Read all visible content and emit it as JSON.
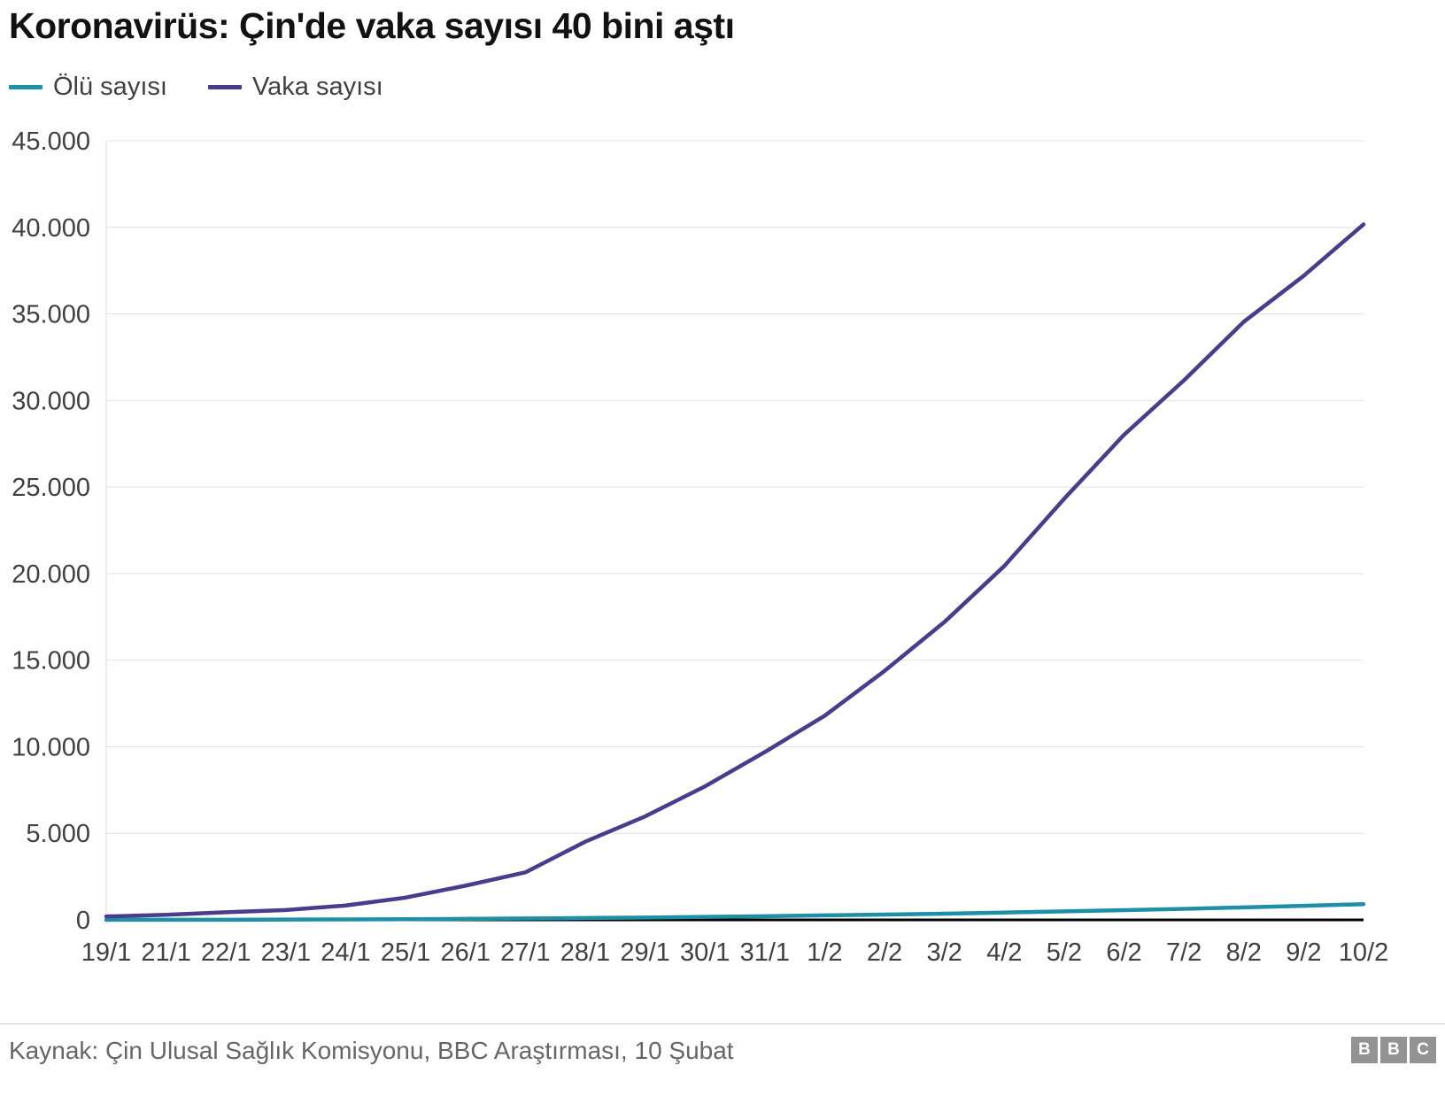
{
  "title": "Koronavirüs: Çin'de vaka sayısı 40 bini aştı",
  "footer": {
    "source": "Kaynak: Çin Ulusal Sağlık Komisyonu, BBC Araştırması, 10 Şubat",
    "logo_letters": [
      "B",
      "B",
      "C"
    ]
  },
  "chart_data": {
    "type": "line",
    "title": "Koronavirüs: Çin'de vaka sayısı 40 bini aştı",
    "categories": [
      "19/1",
      "21/1",
      "22/1",
      "23/1",
      "24/1",
      "25/1",
      "26/1",
      "27/1",
      "28/1",
      "29/1",
      "30/1",
      "31/1",
      "1/2",
      "2/2",
      "3/2",
      "4/2",
      "5/2",
      "6/2",
      "7/2",
      "8/2",
      "9/2",
      "10/2"
    ],
    "series": [
      {
        "name": "Ölü sayısı",
        "color": "#1f8fa6",
        "values": [
          3,
          6,
          9,
          17,
          25,
          41,
          56,
          80,
          106,
          132,
          170,
          213,
          259,
          304,
          361,
          425,
          490,
          563,
          636,
          722,
          811,
          908
        ]
      },
      {
        "name": "Vaka sayısı",
        "color": "#4a3c8c",
        "values": [
          198,
          291,
          440,
          571,
          830,
          1287,
          1975,
          2744,
          4515,
          5974,
          7711,
          9692,
          11791,
          14380,
          17205,
          20438,
          24324,
          28018,
          31161,
          34546,
          37198,
          40171
        ]
      }
    ],
    "xlabel": "",
    "ylabel": "",
    "ylim": [
      0,
      45000
    ],
    "ytick_step": 5000,
    "ytick_labels": [
      "0",
      "5.000",
      "10.000",
      "15.000",
      "20.000",
      "25.000",
      "30.000",
      "35.000",
      "40.000",
      "45.000"
    ],
    "grid": "horizontal",
    "legend_position": "top-left"
  }
}
